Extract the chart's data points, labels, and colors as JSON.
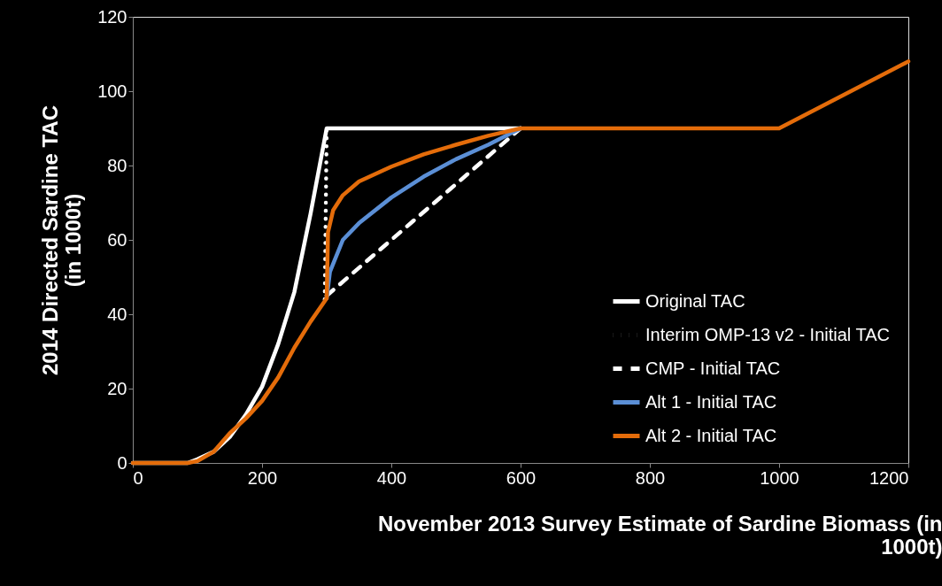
{
  "chart_data": {
    "type": "line",
    "xlabel": "November 2013 Survey Estimate of Sardine Biomass (in 1000t)",
    "ylabel": "2014 Directed Sardine TAC (in 1000t)",
    "xlim": [
      0,
      1200
    ],
    "xticks": [
      0,
      200,
      400,
      600,
      800,
      1000,
      1200
    ],
    "ylim": [
      0,
      120
    ],
    "yticks": [
      0,
      20,
      40,
      60,
      80,
      100,
      120
    ],
    "grid": false,
    "legend": "bottom right",
    "marker": "none",
    "series": [
      {
        "name": "Original TAC",
        "color": "#ffffff",
        "line_style": "solid",
        "x": [
          0,
          85,
          100,
          125,
          150,
          175,
          200,
          225,
          250,
          275,
          300,
          600
        ],
        "values": [
          0,
          0,
          1,
          3,
          7,
          13,
          20.5,
          32,
          46,
          67,
          90,
          90
        ]
      },
      {
        "name": "Interim OMP-13 v2 - Initial TAC",
        "color": "#ffffff",
        "line_style": "dotted",
        "x": [
          297,
          300
        ],
        "values": [
          44,
          90
        ]
      },
      {
        "name": "CMP - Initial TAC",
        "color": "#ffffff",
        "line_style": "dashed",
        "x": [
          300,
          600
        ],
        "values": [
          45,
          90
        ]
      },
      {
        "name": "Alt 1 - Initial TAC",
        "color": "#5b8fd6",
        "line_style": "solid",
        "x": [
          300,
          305,
          325,
          350,
          400,
          450,
          500,
          550,
          600
        ],
        "values": [
          44.3,
          51.4,
          60,
          64.5,
          71.4,
          77,
          81.7,
          85.6,
          90
        ]
      },
      {
        "name": "Alt 2 - Initial TAC",
        "color": "#e46c0a",
        "line_style": "solid",
        "x": [
          0,
          85,
          100,
          125,
          150,
          175,
          200,
          225,
          250,
          275,
          300,
          302,
          310,
          325,
          350,
          400,
          450,
          500,
          550,
          600,
          1000,
          1200
        ],
        "values": [
          0,
          0,
          0.5,
          3,
          8,
          12,
          16.7,
          23,
          31,
          38,
          44.3,
          62,
          68,
          72,
          75.7,
          79.7,
          83,
          85.6,
          88,
          90,
          90,
          108
        ]
      }
    ]
  }
}
